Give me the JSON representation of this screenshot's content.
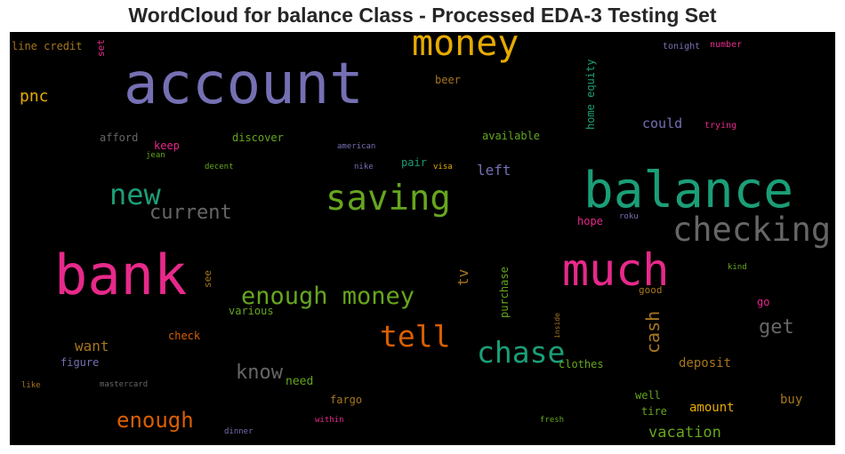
{
  "title": "WordCloud for balance Class - Processed EDA-3 Testing Set",
  "words": {
    "account": "account",
    "money": "money",
    "balance": "balance",
    "bank": "bank",
    "much": "much",
    "checking": "checking",
    "saving": "saving",
    "new": "new",
    "current": "current",
    "enough_money": "enough money",
    "tell": "tell",
    "chase": "chase",
    "enough": "enough",
    "know": "know",
    "get": "get",
    "cash": "cash",
    "vacation": "vacation",
    "line_credit": "line credit",
    "set": "set",
    "number": "number",
    "tonight": "tonight",
    "home_equity": "home equity",
    "could": "could",
    "trying": "trying",
    "pnc": "pnc",
    "beer": "beer",
    "afford": "afford",
    "keep": "keep",
    "jean": "jean",
    "discover": "discover",
    "american": "american",
    "available": "available",
    "decent": "decent",
    "nike": "nike",
    "pair": "pair",
    "visa": "visa",
    "left": "left",
    "hope": "hope",
    "roku": "roku",
    "tv": "tv",
    "purchase": "purchase",
    "see": "see",
    "kind": "kind",
    "good": "good",
    "go": "go",
    "various": "various",
    "want": "want",
    "check": "check",
    "figure": "figure",
    "inside": "inside",
    "deposit": "deposit",
    "clothes": "clothes",
    "like": "like",
    "mastercard": "mastercard",
    "need": "need",
    "fargo": "fargo",
    "well": "well",
    "buy": "buy",
    "amount": "amount",
    "tire": "tire",
    "within": "within",
    "fresh": "fresh",
    "dinner": "dinner"
  }
}
